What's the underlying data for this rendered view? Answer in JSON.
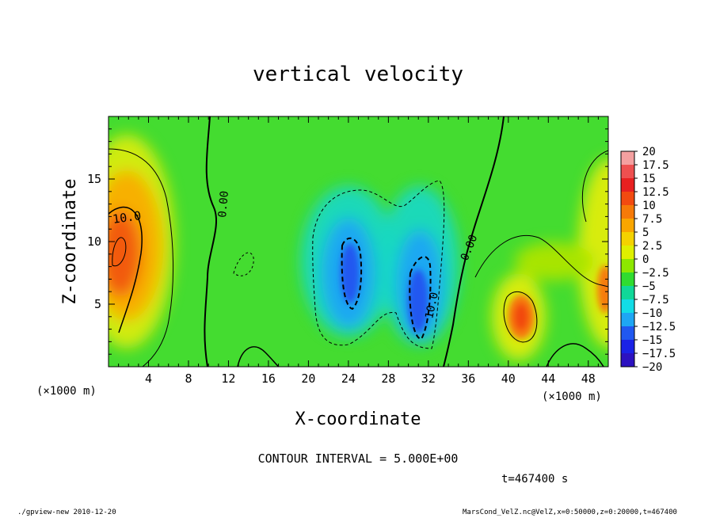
{
  "chart_data": {
    "type": "heatmap",
    "title": "vertical velocity",
    "xlabel": "X-coordinate",
    "ylabel": "Z-coordinate",
    "x_unit": "(×1000 m)",
    "z_unit": "(×1000 m)",
    "xlim": [
      0,
      50
    ],
    "ylim": [
      0,
      20
    ],
    "x_ticks": [
      4,
      8,
      12,
      16,
      20,
      24,
      28,
      32,
      36,
      40,
      44,
      48
    ],
    "y_ticks": [
      5,
      10,
      15
    ],
    "colorbar": {
      "labels": [
        "20",
        "17.5",
        "15",
        "12.5",
        "10",
        "7.5",
        "5",
        "2.5",
        "0",
        "−2.5",
        "−5",
        "−7.5",
        "−10",
        "−12.5",
        "−15",
        "−17.5",
        "−20"
      ],
      "colors": [
        "#f4a0a0",
        "#ee5050",
        "#e82020",
        "#f24a10",
        "#f67a08",
        "#f9a600",
        "#f4d200",
        "#dff000",
        "#8de800",
        "#30dc30",
        "#10d898",
        "#12dce6",
        "#1ea6f4",
        "#2058f0",
        "#1a22e6",
        "#2c12c0",
        "#7c18b8"
      ]
    },
    "contour_labels": [
      "10.0",
      "0.00",
      "0.00",
      "10.0"
    ],
    "contour_interval_text": "CONTOUR INTERVAL = 5.000E+00",
    "time_text": "t=467400 s"
  },
  "footer": {
    "left": "./gpview-new   2010-12-20",
    "right": "MarsCond_VelZ.nc@VelZ,x=0:50000,z=0:20000,t=467400"
  }
}
